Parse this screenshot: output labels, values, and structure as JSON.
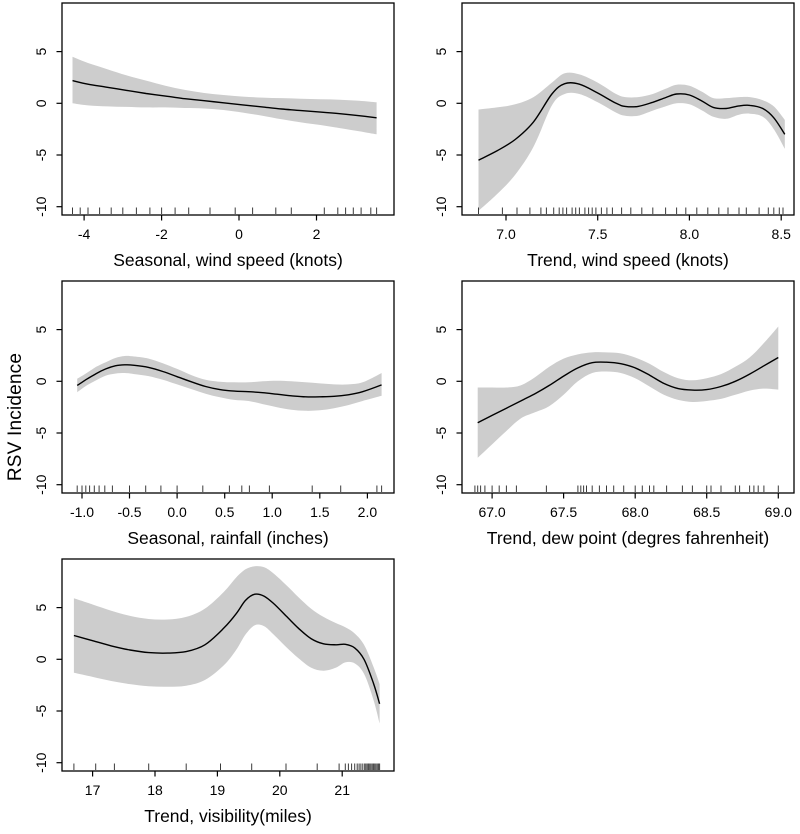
{
  "figure": {
    "ylabel": "RSV Incidence",
    "background": "#ffffff",
    "band_color": "#cdcdcd",
    "line_color": "#000000",
    "y_domain": [
      -10.8,
      9.7
    ],
    "y_ticks": [
      5,
      0,
      -5,
      -10
    ],
    "y_tick_labels": [
      "5",
      "0",
      "-5",
      "-10"
    ]
  },
  "chart_data": [
    {
      "type": "line",
      "xlabel": "Seasonal, wind speed (knots)",
      "x_domain": [
        -4.57,
        4.0
      ],
      "x_ticks": [
        -4,
        -2,
        0,
        2
      ],
      "x_tick_labels": [
        "-4",
        "-2",
        "0",
        "2"
      ],
      "x": [
        -4.3,
        -3.9,
        -3.4,
        -2.9,
        -2.4,
        -1.9,
        -1.4,
        -0.9,
        -0.4,
        0.1,
        0.6,
        1.1,
        1.6,
        2.1,
        2.6,
        3.1,
        3.55
      ],
      "smooth": [
        2.2,
        1.85,
        1.55,
        1.25,
        0.95,
        0.7,
        0.45,
        0.25,
        0.05,
        -0.15,
        -0.35,
        -0.55,
        -0.7,
        -0.85,
        -1.0,
        -1.2,
        -1.4
      ],
      "ci_upper": [
        4.5,
        3.9,
        3.3,
        2.7,
        2.2,
        1.7,
        1.3,
        1.0,
        0.8,
        0.65,
        0.55,
        0.5,
        0.45,
        0.4,
        0.35,
        0.25,
        0.1
      ],
      "ci_lower": [
        0.0,
        -0.2,
        -0.3,
        -0.35,
        -0.4,
        -0.4,
        -0.45,
        -0.5,
        -0.65,
        -0.9,
        -1.2,
        -1.55,
        -1.85,
        -2.1,
        -2.4,
        -2.7,
        -3.0
      ],
      "rug": [
        -4.3,
        -4.1,
        -3.9,
        -3.6,
        -3.3,
        -3.0,
        -2.65,
        -2.3,
        -2.0,
        -1.65,
        -1.3,
        -0.75,
        -0.1,
        0.35,
        0.95,
        1.35,
        2.2,
        2.55,
        2.75,
        2.95,
        3.15,
        3.4,
        3.55
      ]
    },
    {
      "type": "line",
      "xlabel": "Trend, wind speed (knots)",
      "x_domain": [
        6.76,
        8.57
      ],
      "x_ticks": [
        7.0,
        7.5,
        8.0,
        8.5
      ],
      "x_tick_labels": [
        "7.0",
        "7.5",
        "8.0",
        "8.5"
      ],
      "x": [
        6.85,
        6.95,
        7.05,
        7.15,
        7.25,
        7.32,
        7.4,
        7.5,
        7.6,
        7.65,
        7.72,
        7.8,
        7.87,
        7.93,
        8.0,
        8.07,
        8.13,
        8.2,
        8.27,
        8.33,
        8.4,
        8.46,
        8.52
      ],
      "smooth": [
        -5.5,
        -4.6,
        -3.5,
        -1.8,
        0.9,
        1.9,
        1.85,
        1.0,
        0.0,
        -0.3,
        -0.3,
        0.1,
        0.55,
        0.9,
        0.8,
        0.2,
        -0.4,
        -0.5,
        -0.25,
        -0.2,
        -0.5,
        -1.4,
        -3.0
      ],
      "ci_upper": [
        -0.6,
        -0.4,
        -0.1,
        0.6,
        2.0,
        2.9,
        2.8,
        2.0,
        0.9,
        0.6,
        0.6,
        0.9,
        1.4,
        1.8,
        1.7,
        1.1,
        0.5,
        0.5,
        0.6,
        0.6,
        0.3,
        -0.3,
        -1.6
      ],
      "ci_lower": [
        -10.4,
        -8.8,
        -6.9,
        -4.2,
        -0.2,
        0.9,
        0.9,
        0.1,
        -0.9,
        -1.2,
        -1.2,
        -0.7,
        -0.3,
        0.0,
        -0.1,
        -0.7,
        -1.3,
        -1.5,
        -1.1,
        -1.0,
        -1.3,
        -2.5,
        -4.4
      ],
      "rug": [
        6.85,
        6.98,
        7.06,
        7.13,
        7.19,
        7.22,
        7.26,
        7.29,
        7.31,
        7.33,
        7.36,
        7.38,
        7.4,
        7.43,
        7.45,
        7.47,
        7.49,
        7.52,
        7.55,
        7.58,
        7.63,
        7.68,
        7.74,
        7.8,
        7.87,
        7.93,
        7.98,
        8.04,
        8.1,
        8.16,
        8.21,
        8.27,
        8.31,
        8.38,
        8.43,
        8.46,
        8.49,
        8.51
      ]
    },
    {
      "type": "line",
      "xlabel": "Seasonal, rainfall (inches)",
      "x_domain": [
        -1.21,
        2.28
      ],
      "x_ticks": [
        -1.0,
        -0.5,
        0.0,
        0.5,
        1.0,
        1.5,
        2.0
      ],
      "x_tick_labels": [
        "-1.0",
        "-0.5",
        "0.0",
        "0.5",
        "1.0",
        "1.5",
        "2.0"
      ],
      "x": [
        -1.05,
        -0.95,
        -0.85,
        -0.75,
        -0.65,
        -0.55,
        -0.45,
        -0.3,
        -0.15,
        0.0,
        0.15,
        0.3,
        0.45,
        0.6,
        0.75,
        0.9,
        1.05,
        1.2,
        1.35,
        1.5,
        1.65,
        1.8,
        1.95,
        2.15
      ],
      "smooth": [
        -0.4,
        0.2,
        0.75,
        1.2,
        1.5,
        1.6,
        1.55,
        1.35,
        0.95,
        0.45,
        -0.05,
        -0.5,
        -0.8,
        -0.95,
        -1.0,
        -1.1,
        -1.25,
        -1.4,
        -1.5,
        -1.5,
        -1.45,
        -1.3,
        -1.0,
        -0.35
      ],
      "ci_upper": [
        0.25,
        0.8,
        1.4,
        1.85,
        2.25,
        2.45,
        2.4,
        2.2,
        1.75,
        1.2,
        0.6,
        0.15,
        -0.05,
        -0.1,
        -0.1,
        0.0,
        0.05,
        0.0,
        -0.1,
        -0.2,
        -0.3,
        -0.3,
        -0.1,
        0.8
      ],
      "ci_lower": [
        -1.05,
        -0.4,
        0.1,
        0.55,
        0.75,
        0.8,
        0.7,
        0.5,
        0.15,
        -0.3,
        -0.75,
        -1.2,
        -1.55,
        -1.8,
        -1.9,
        -2.2,
        -2.5,
        -2.75,
        -2.85,
        -2.8,
        -2.6,
        -2.3,
        -1.9,
        -1.4
      ],
      "rug": [
        -1.05,
        -1.0,
        -0.96,
        -0.92,
        -0.87,
        -0.82,
        -0.76,
        -0.68,
        -0.5,
        -0.33,
        -0.17,
        0.0,
        0.27,
        0.55,
        0.68,
        0.76,
        0.97,
        1.42,
        1.72,
        2.1,
        2.15
      ]
    },
    {
      "type": "line",
      "xlabel": "Trend, dew point (degres fahrenheit)",
      "x_domain": [
        66.79,
        69.11
      ],
      "x_ticks": [
        67.0,
        67.5,
        68.0,
        68.5,
        69.0
      ],
      "x_tick_labels": [
        "67.0",
        "67.5",
        "68.0",
        "68.5",
        "69.0"
      ],
      "x": [
        66.9,
        67.0,
        67.1,
        67.2,
        67.3,
        67.4,
        67.5,
        67.6,
        67.7,
        67.8,
        67.9,
        68.0,
        68.1,
        68.2,
        68.3,
        68.4,
        68.5,
        68.6,
        68.7,
        68.8,
        68.9,
        69.0
      ],
      "smooth": [
        -4.0,
        -3.3,
        -2.6,
        -1.9,
        -1.2,
        -0.4,
        0.5,
        1.3,
        1.8,
        1.85,
        1.7,
        1.3,
        0.6,
        -0.2,
        -0.7,
        -0.85,
        -0.8,
        -0.5,
        0.0,
        0.7,
        1.5,
        2.3
      ],
      "ci_upper": [
        -0.6,
        -0.6,
        -0.6,
        -0.4,
        0.4,
        1.4,
        2.2,
        2.6,
        2.8,
        2.8,
        2.7,
        2.3,
        1.7,
        0.9,
        0.3,
        0.1,
        0.3,
        0.7,
        1.4,
        2.3,
        3.7,
        5.3
      ],
      "ci_lower": [
        -7.4,
        -6.1,
        -4.8,
        -3.6,
        -3.0,
        -2.4,
        -1.3,
        0.0,
        0.8,
        0.95,
        0.8,
        0.3,
        -0.5,
        -1.3,
        -1.8,
        -2.0,
        -1.9,
        -1.7,
        -1.3,
        -0.9,
        -0.7,
        -0.8
      ],
      "rug": [
        66.88,
        66.9,
        66.92,
        66.95,
        67.0,
        67.05,
        67.1,
        67.17,
        67.38,
        67.6,
        67.62,
        67.64,
        67.66,
        67.7,
        67.75,
        67.8,
        67.85,
        67.92,
        68.0,
        68.05,
        68.1,
        68.13,
        68.22,
        68.33,
        68.4,
        68.5,
        68.53,
        68.6,
        68.7,
        68.73,
        68.8,
        68.83,
        68.86,
        68.9,
        69.0
      ]
    },
    {
      "type": "line",
      "xlabel": "Trend, visibility(miles)",
      "x_domain": [
        16.51,
        21.83
      ],
      "x_ticks": [
        17,
        18,
        19,
        20,
        21
      ],
      "x_tick_labels": [
        "17",
        "18",
        "19",
        "20",
        "21"
      ],
      "x": [
        16.7,
        17.0,
        17.3,
        17.6,
        17.9,
        18.2,
        18.5,
        18.8,
        19.1,
        19.3,
        19.45,
        19.6,
        19.75,
        19.9,
        20.1,
        20.3,
        20.5,
        20.7,
        20.9,
        21.05,
        21.2,
        21.35,
        21.5,
        21.6
      ],
      "smooth": [
        2.3,
        1.8,
        1.3,
        0.9,
        0.65,
        0.6,
        0.75,
        1.4,
        3.0,
        4.4,
        5.7,
        6.3,
        6.1,
        5.4,
        4.2,
        3.0,
        2.0,
        1.5,
        1.4,
        1.45,
        1.1,
        0.0,
        -2.3,
        -4.3
      ],
      "ci_upper": [
        5.9,
        5.3,
        4.7,
        4.2,
        3.9,
        3.85,
        4.1,
        4.9,
        6.5,
        7.9,
        8.7,
        9.0,
        8.9,
        8.3,
        7.2,
        6.0,
        4.9,
        4.1,
        3.5,
        3.1,
        2.5,
        1.4,
        -0.7,
        -2.4
      ],
      "ci_lower": [
        -1.3,
        -1.7,
        -2.1,
        -2.4,
        -2.6,
        -2.65,
        -2.55,
        -2.0,
        -0.6,
        0.9,
        2.4,
        3.3,
        3.2,
        2.4,
        1.2,
        0.1,
        -0.8,
        -1.1,
        -0.8,
        -0.3,
        -0.4,
        -1.4,
        -3.9,
        -6.2
      ],
      "rug": [
        16.7,
        17.05,
        17.35,
        17.9,
        18.5,
        19.05,
        19.55,
        20.1,
        20.6,
        20.95,
        21.05,
        21.1,
        21.15,
        21.2,
        21.24,
        21.27,
        21.3,
        21.33,
        21.36,
        21.38,
        21.4,
        21.42,
        21.44,
        21.46,
        21.48,
        21.5,
        21.52,
        21.54,
        21.56,
        21.58,
        21.6
      ]
    }
  ]
}
